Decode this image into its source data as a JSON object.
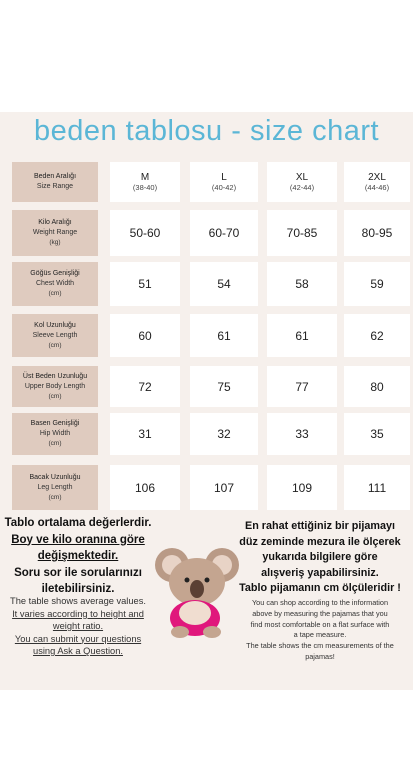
{
  "header": {
    "title": "beden tablosu - size chart"
  },
  "table": {
    "header": {
      "label": [
        "Beden Aralığı",
        "Size Range"
      ],
      "sizes": [
        {
          "name": "M",
          "range": "(38-40)"
        },
        {
          "name": "L",
          "range": "(40-42)"
        },
        {
          "name": "XL",
          "range": "(42-44)"
        },
        {
          "name": "2XL",
          "range": "(44-46)"
        }
      ]
    },
    "rows": [
      {
        "label": [
          "Kilo Aralığı",
          "Weight Range",
          "(kg)"
        ],
        "values": [
          "50-60",
          "60-70",
          "70-85",
          "80-95"
        ]
      },
      {
        "label": [
          "Göğüs Genişliği",
          "Chest Width",
          "(cm)"
        ],
        "values": [
          51,
          54,
          58,
          59
        ]
      },
      {
        "label": [
          "Kol Uzunluğu",
          "Sleeve Length",
          "(cm)"
        ],
        "values": [
          60,
          61,
          61,
          62
        ]
      },
      {
        "label": [
          "Üst Beden Uzunluğu",
          "Upper Body Length",
          "(cm)"
        ],
        "values": [
          72,
          75,
          77,
          80
        ]
      },
      {
        "label": [
          "Basen Genişliği",
          "Hip Width",
          "(cm)"
        ],
        "values": [
          31,
          32,
          33,
          35
        ]
      },
      {
        "label": [
          "Bacak Uzunluğu",
          "Leg Length",
          "(cm)"
        ],
        "values": [
          106,
          107,
          109,
          111
        ]
      }
    ]
  },
  "notes": {
    "left": {
      "bold": [
        "Tablo ortalama değerlerdir.",
        "Boy ve kilo oranına göre",
        "değişmektedir.",
        "Soru sor ile sorularınızı",
        "iletebilirsiniz."
      ],
      "small": [
        "The table shows average values.",
        "It varies according to height and",
        "weight ratio.",
        "You can submit your questions",
        "using Ask a Question."
      ]
    },
    "right": {
      "bold": [
        "En rahat ettiğiniz bir pijamayı",
        "düz zeminde mezura ile ölçerek",
        "yukarıda bilgilere göre",
        "alışveriş yapabilirsiniz.",
        "Tablo pijamanın cm ölçüleridir !"
      ],
      "small": [
        "You can shop according to the information",
        "above by measuring the pajamas that you",
        "find most comfortable on a flat surface with",
        "a tape measure.",
        "The table shows the cm measurements of the",
        "pajamas!"
      ]
    }
  }
}
